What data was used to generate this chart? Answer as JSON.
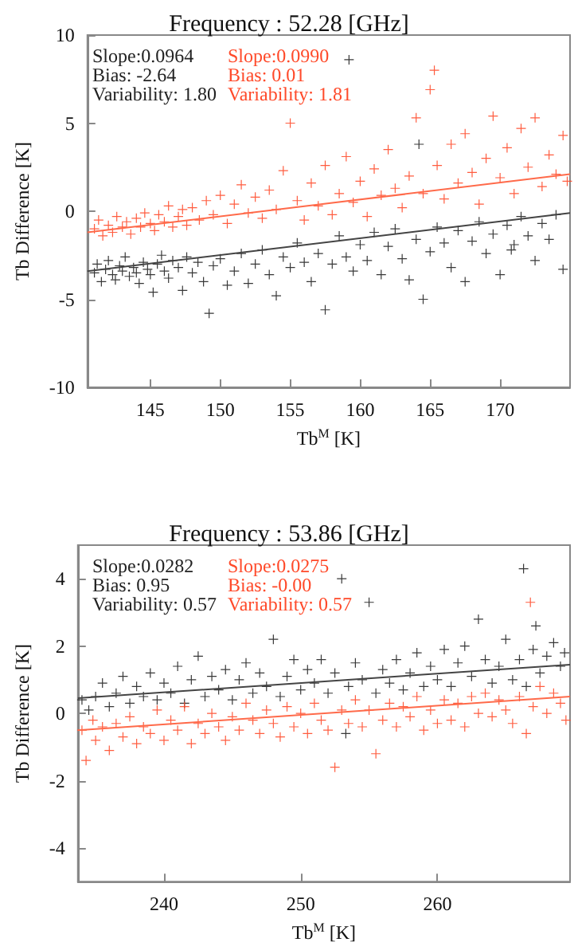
{
  "chart_data": [
    {
      "type": "scatter",
      "title": "Frequency : 52.28 [GHz]",
      "xlabel": "Tb$^{M}$ [K]",
      "ylabel": "Tb Difference [K]",
      "xlim": [
        140.5,
        175
      ],
      "ylim": [
        -10,
        10
      ],
      "xticks": [
        145,
        150,
        155,
        160,
        165,
        170
      ],
      "yticks": [
        -10,
        -5,
        0,
        5,
        10
      ],
      "grid": false,
      "marker": "cross",
      "annotations": [
        "Slope:0.0964",
        "Bias: -2.64",
        "Variability: 1.80",
        "Slope:0.0990",
        "Bias: 0.01",
        "Variability: 1.81"
      ],
      "series": [
        {
          "color": "#222222",
          "x": [
            141,
            141.2,
            141.5,
            141.8,
            142,
            142.3,
            142.5,
            142.8,
            143,
            143.2,
            143.5,
            143.8,
            144,
            144.2,
            144.5,
            144.8,
            145,
            145.2,
            145.5,
            145.8,
            146,
            146.3,
            146.6,
            147,
            147.3,
            147.6,
            148,
            148.4,
            148.8,
            149.2,
            149.5,
            150,
            150.5,
            151,
            151.5,
            152,
            152.5,
            153,
            153.5,
            154,
            154.5,
            155,
            155.5,
            156,
            156.5,
            157,
            157.5,
            158,
            158.5,
            159,
            159.2,
            159.5,
            160,
            160.5,
            161,
            161.5,
            162,
            162.5,
            163,
            163.5,
            164,
            164.2,
            164.5,
            165,
            165.5,
            166,
            166.5,
            167,
            167.5,
            168,
            168.5,
            169,
            169.5,
            170,
            170.5,
            170.8,
            171,
            171.5,
            172,
            172.5,
            173,
            173.5,
            174,
            174.5
          ],
          "values": [
            -3.5,
            -3.0,
            -4.0,
            -3.3,
            -2.8,
            -3.6,
            -3.9,
            -3.1,
            -3.4,
            -2.6,
            -3.7,
            -3.2,
            -3.5,
            -4.1,
            -2.9,
            -3.3,
            -3.6,
            -4.6,
            -3.0,
            -2.5,
            -3.4,
            -3.8,
            -2.8,
            -3.2,
            -4.5,
            -2.6,
            -3.5,
            -2.9,
            -4.0,
            -5.8,
            -3.1,
            -2.7,
            -4.2,
            -3.4,
            -2.4,
            -4.1,
            -3.0,
            -2.2,
            -3.6,
            -4.8,
            -2.6,
            -3.2,
            -1.8,
            -2.9,
            -4.0,
            -2.4,
            -5.6,
            -3.0,
            -1.4,
            -2.6,
            8.6,
            -3.4,
            -1.9,
            -2.8,
            -1.2,
            -3.6,
            -2.0,
            -1.0,
            -2.7,
            -3.9,
            -1.6,
            3.8,
            -5.0,
            -2.3,
            -0.9,
            -1.8,
            -3.2,
            -1.1,
            -4.0,
            -1.7,
            -0.6,
            -2.4,
            -1.3,
            -3.6,
            -0.8,
            -2.2,
            -1.9,
            -0.3,
            -1.4,
            -2.8,
            -0.7,
            -1.6,
            -0.2,
            -3.3
          ]
        },
        {
          "color": "#ff4a2a",
          "x": [
            141,
            141.3,
            141.6,
            142,
            142.3,
            142.6,
            143,
            143.3,
            143.6,
            144,
            144.3,
            144.6,
            145,
            145.3,
            145.6,
            146,
            146.3,
            146.6,
            147,
            147.3,
            147.6,
            148,
            148.5,
            149,
            149.5,
            150,
            150.5,
            151,
            151.5,
            152,
            152.5,
            153,
            153.5,
            154,
            154.5,
            155,
            155.5,
            156,
            156.5,
            157,
            157.5,
            158,
            158.5,
            159,
            159.5,
            160,
            160.5,
            161,
            161.5,
            162,
            162.5,
            163,
            163.5,
            164,
            164.5,
            165,
            165.3,
            165.5,
            166,
            166.5,
            167,
            167.5,
            168,
            168.5,
            169,
            169.5,
            170,
            170.5,
            171,
            171.5,
            172,
            172.5,
            173,
            173.5,
            174,
            174.5,
            174.8
          ],
          "values": [
            -1.0,
            -0.5,
            -1.4,
            -0.8,
            -1.2,
            -0.3,
            -0.9,
            -0.6,
            -1.3,
            -0.4,
            -0.9,
            -0.1,
            -0.7,
            -1.1,
            -0.2,
            -0.6,
            0.3,
            -0.9,
            -0.3,
            0.1,
            -0.8,
            0.2,
            -0.5,
            0.6,
            -0.2,
            0.9,
            -0.7,
            0.4,
            1.5,
            -0.1,
            0.8,
            -0.4,
            1.2,
            0.1,
            2.3,
            5.0,
            0.6,
            -0.5,
            1.6,
            0.3,
            2.6,
            -0.2,
            1.0,
            3.1,
            0.5,
            1.7,
            -0.3,
            2.4,
            0.9,
            3.5,
            1.3,
            0.2,
            2.0,
            5.3,
            1.0,
            6.9,
            8.0,
            2.6,
            0.7,
            3.8,
            1.6,
            4.4,
            2.2,
            0.4,
            3.0,
            5.4,
            1.9,
            3.6,
            1.0,
            4.7,
            2.5,
            5.3,
            1.4,
            3.2,
            2.1,
            4.3,
            1.7
          ]
        },
        {
          "type": "line",
          "marker": "none",
          "color": "#444444",
          "x": [
            140.5,
            175
          ],
          "values": [
            -3.4,
            -0.1
          ]
        },
        {
          "type": "line",
          "marker": "none",
          "color": "#ff6a4a",
          "x": [
            140.5,
            175
          ],
          "values": [
            -1.2,
            2.1
          ]
        }
      ]
    },
    {
      "type": "scatter",
      "title": "Frequency : 53.86 [GHz]",
      "xlabel": "Tb$^{M}$ [K]",
      "ylabel": "Tb Difference [K]",
      "xlim": [
        233.7,
        269.7
      ],
      "ylim": [
        -5,
        5
      ],
      "xticks": [
        240,
        250,
        260
      ],
      "yticks": [
        -4,
        -2,
        0,
        2,
        4
      ],
      "grid": false,
      "marker": "cross",
      "annotations": [
        "Slope:0.0282",
        "Bias: 0.95",
        "Variability: 0.57",
        "Slope:0.0275",
        "Bias: -0.00",
        "Variability: 0.57"
      ],
      "series": [
        {
          "color": "#222222",
          "x": [
            234,
            234.5,
            235,
            235.5,
            236,
            236.5,
            237,
            237.5,
            238,
            238.5,
            239,
            239.5,
            240,
            240.5,
            241,
            241.5,
            242,
            242.5,
            243,
            243.5,
            244,
            244.5,
            245,
            245.5,
            246,
            246.5,
            247,
            247.5,
            248,
            248.5,
            249,
            249.5,
            250,
            250.5,
            251,
            251.5,
            252,
            252.5,
            253,
            253.3,
            253.5,
            254,
            254.5,
            255,
            255.5,
            256,
            256.5,
            257,
            257.5,
            258,
            258.5,
            259,
            259.5,
            260,
            260.5,
            261,
            261.5,
            262,
            262.5,
            263,
            263.5,
            264,
            264.5,
            265,
            265.5,
            266,
            266.3,
            266.5,
            267,
            267.2,
            267.5,
            268,
            268.5,
            269,
            269.3
          ],
          "values": [
            0.4,
            0.1,
            0.5,
            0.9,
            0.2,
            0.6,
            1.1,
            0.3,
            0.8,
            0.5,
            1.2,
            0.4,
            0.9,
            0.6,
            1.4,
            0.3,
            1.0,
            1.7,
            0.5,
            1.1,
            0.7,
            1.3,
            0.4,
            1.0,
            1.5,
            0.6,
            1.2,
            0.8,
            2.2,
            0.5,
            1.1,
            1.6,
            0.7,
            1.3,
            0.9,
            1.6,
            0.6,
            1.2,
            4.0,
            -0.6,
            0.8,
            1.5,
            1.0,
            3.3,
            0.6,
            1.3,
            0.9,
            1.6,
            0.7,
            1.2,
            1.8,
            0.8,
            1.4,
            1.0,
            1.9,
            0.8,
            1.5,
            2.0,
            1.1,
            2.8,
            1.6,
            0.9,
            1.4,
            2.2,
            1.0,
            1.6,
            4.3,
            0.8,
            1.9,
            2.6,
            1.2,
            1.7,
            2.1,
            1.4,
            1.8
          ]
        },
        {
          "color": "#ff4a2a",
          "x": [
            234,
            234.3,
            234.8,
            235,
            235.5,
            236,
            236.5,
            237,
            237.5,
            238,
            238.5,
            239,
            239.5,
            240,
            240.5,
            241,
            241.5,
            242,
            242.5,
            243,
            243.5,
            244,
            244.5,
            245,
            245.5,
            246,
            246.5,
            247,
            247.5,
            248,
            248.5,
            249,
            249.5,
            250,
            250.5,
            251,
            251.5,
            252,
            252.5,
            253,
            253.5,
            254,
            254.5,
            255,
            255.5,
            256,
            256.5,
            257,
            257.5,
            258,
            258.5,
            259,
            259.5,
            260,
            260.5,
            261,
            261.5,
            262,
            262.5,
            263,
            263.5,
            264,
            264.5,
            265,
            265.5,
            266,
            266.5,
            266.8,
            267,
            267.5,
            268,
            268.5,
            269,
            269.4
          ],
          "values": [
            -0.5,
            -1.4,
            -0.2,
            -0.8,
            -0.4,
            -1.1,
            -0.3,
            -0.7,
            -0.1,
            -0.9,
            -0.4,
            -0.6,
            0.1,
            -0.8,
            -0.2,
            -0.5,
            0.2,
            -0.9,
            -0.3,
            -0.6,
            0.0,
            -0.4,
            -0.8,
            -0.1,
            -0.5,
            0.3,
            -0.2,
            -0.6,
            0.1,
            -0.3,
            -0.7,
            0.2,
            -0.4,
            0.0,
            -0.6,
            0.3,
            -0.2,
            -0.5,
            -1.6,
            0.1,
            -0.3,
            0.4,
            -0.4,
            0.1,
            -1.2,
            -0.2,
            0.3,
            -0.4,
            0.2,
            -0.1,
            0.5,
            -0.5,
            0.1,
            -0.3,
            0.4,
            -0.2,
            0.3,
            -0.4,
            0.5,
            0.0,
            0.6,
            -0.1,
            0.4,
            0.1,
            -0.3,
            0.5,
            -0.6,
            3.3,
            0.2,
            0.8,
            0.0,
            0.6,
            0.3,
            -0.2
          ]
        },
        {
          "type": "line",
          "marker": "none",
          "color": "#444444",
          "x": [
            233.7,
            269.7
          ],
          "values": [
            0.45,
            1.45
          ]
        },
        {
          "type": "line",
          "marker": "none",
          "color": "#ff6a4a",
          "x": [
            233.7,
            269.7
          ],
          "values": [
            -0.5,
            0.5
          ]
        }
      ]
    }
  ]
}
